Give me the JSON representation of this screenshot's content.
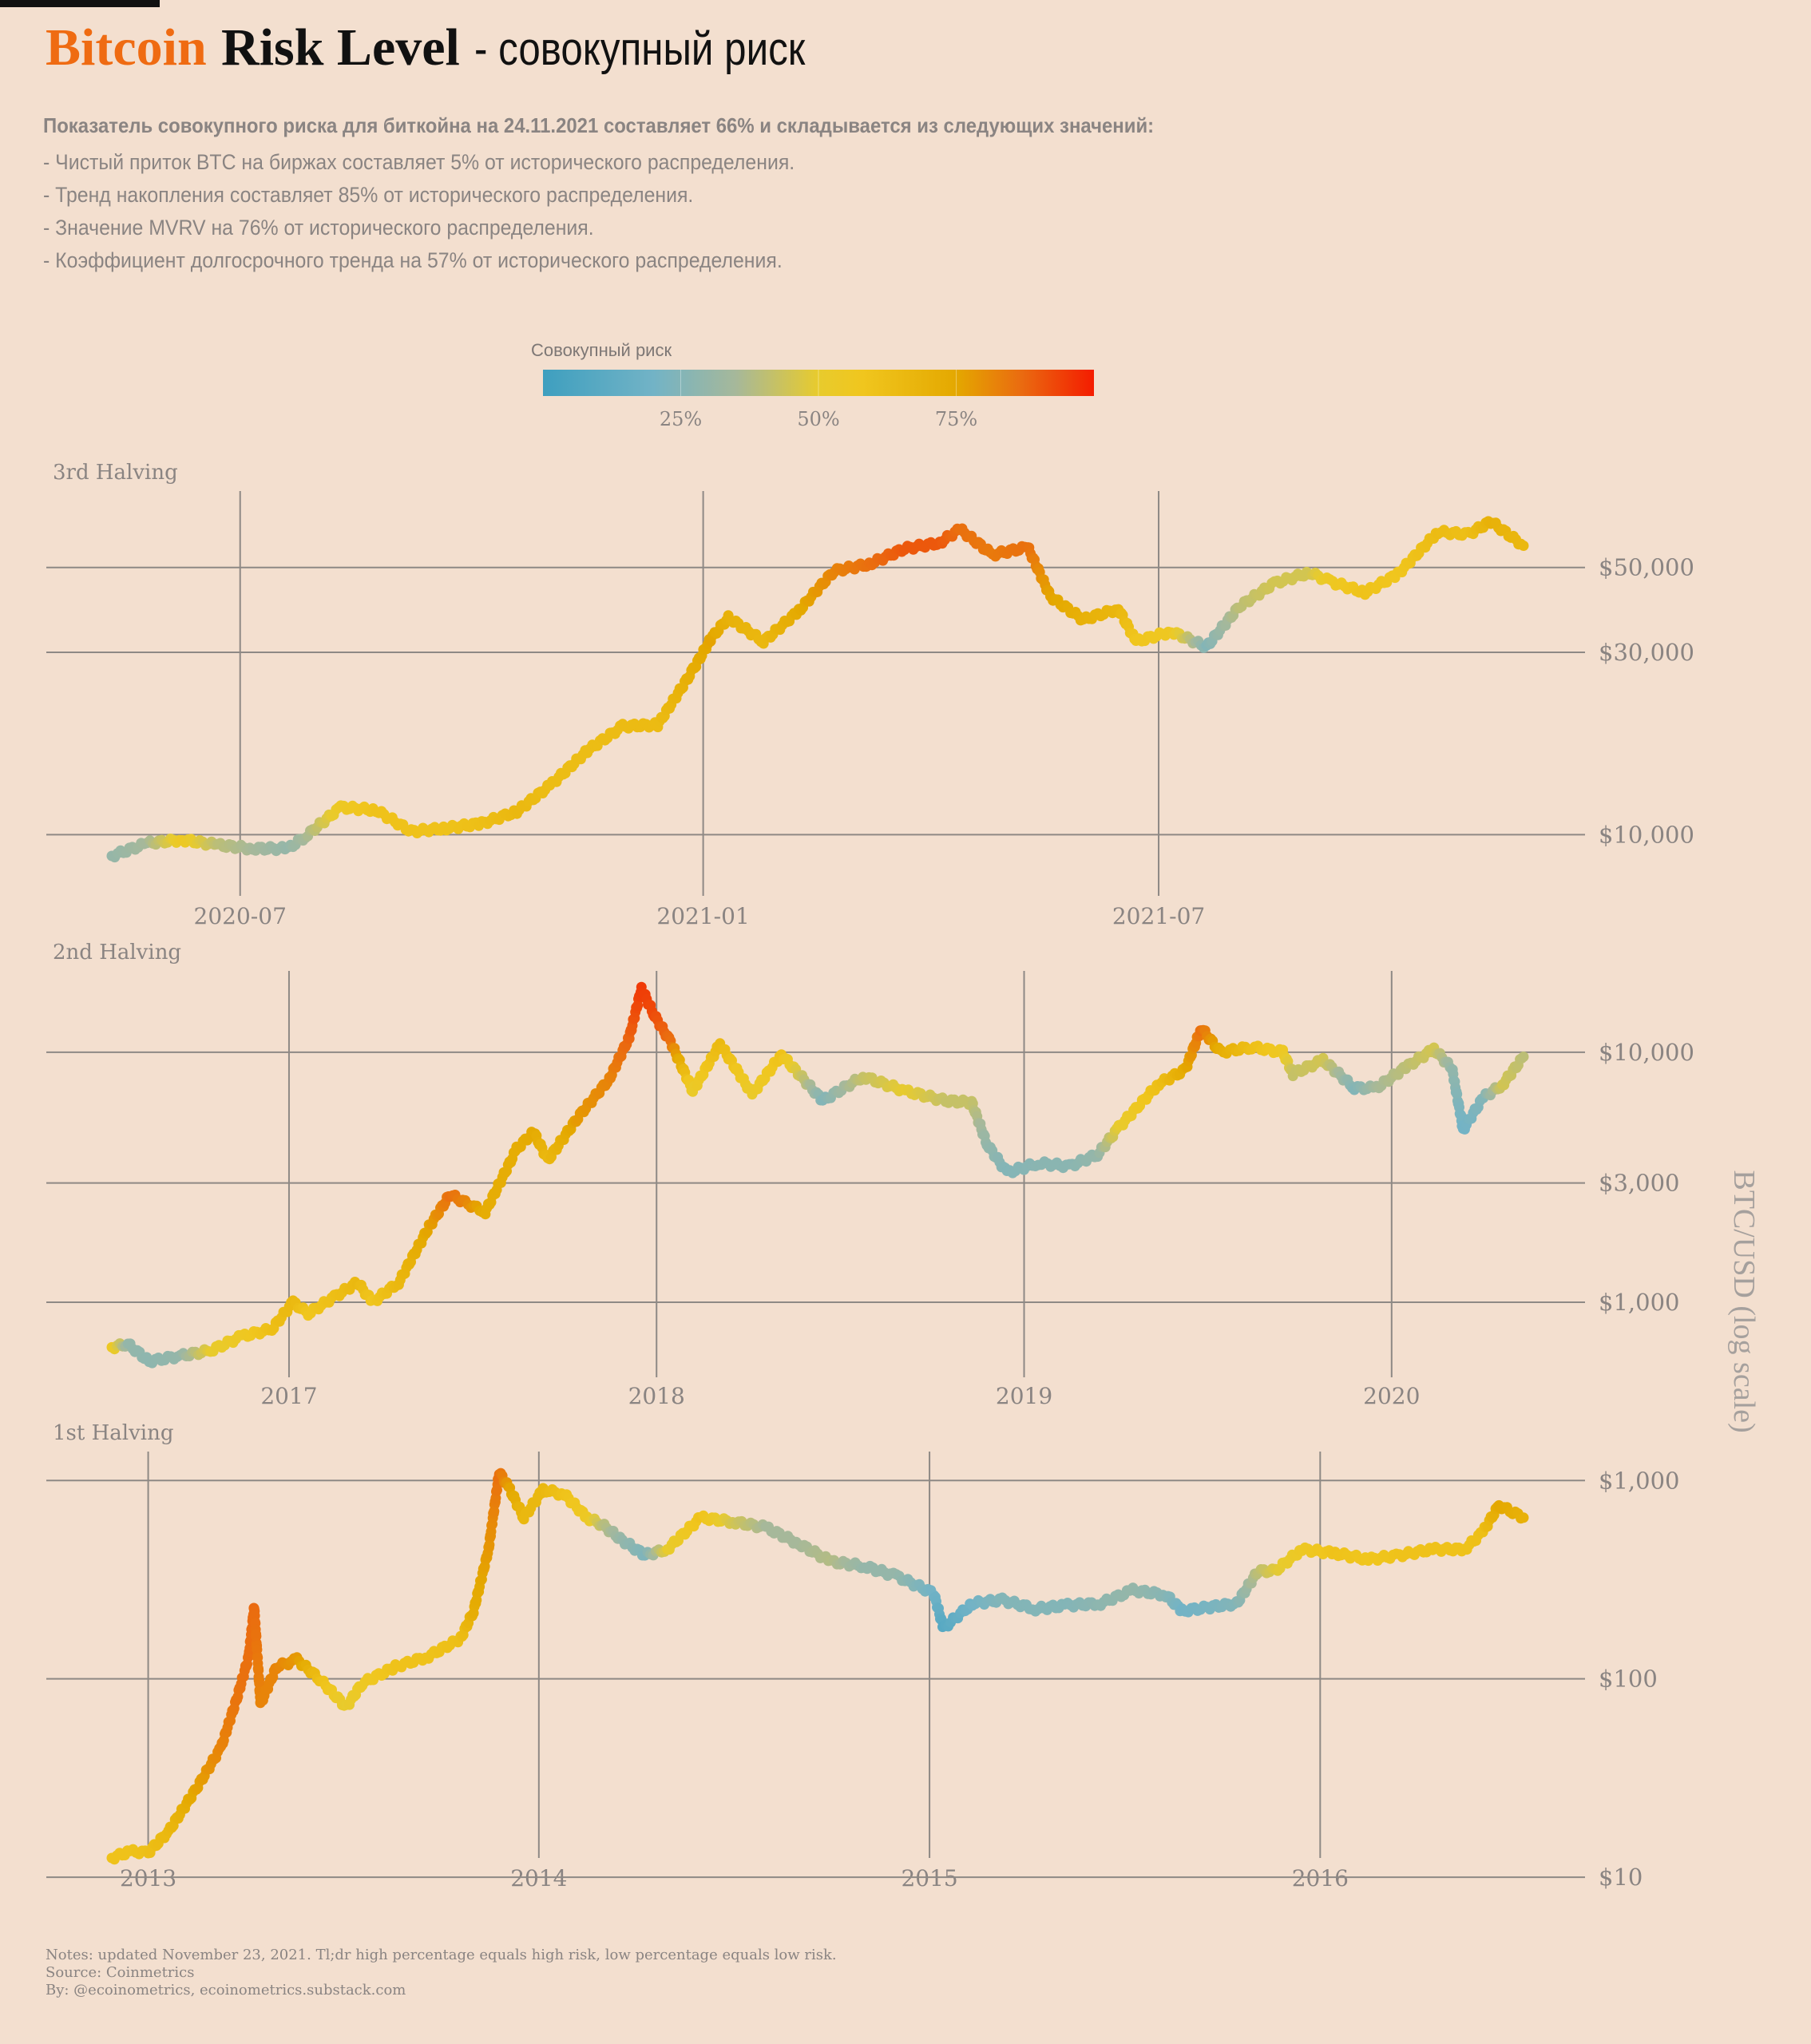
{
  "header": {
    "title_part1": "Bitcoin",
    "title_part2": "Risk Level",
    "title_part3": "- совокупный риск"
  },
  "description": {
    "lead": "Показатель совокупного риска для биткойна на 24.11.2021 составляет 66% и складывается из следующих значений:",
    "lines": [
      "- Чистый приток BTC на биржах составляет 5% от исторического распределения.",
      "- Тренд накопления составляет 85% от исторического распределения.",
      "- Значение MVRV на 76% от исторического распределения.",
      "- Коэффициент долгосрочного тренда на 57% от исторического распределения."
    ]
  },
  "colorbar": {
    "title": "Совокупный риск",
    "ticks": [
      "25%",
      "50%",
      "75%"
    ],
    "tick_values": [
      0.25,
      0.5,
      0.75
    ],
    "stops": [
      {
        "pos": 0.0,
        "color": "#3e9fbf"
      },
      {
        "pos": 0.2,
        "color": "#72b3c6"
      },
      {
        "pos": 0.35,
        "color": "#a6b89a"
      },
      {
        "pos": 0.5,
        "color": "#e8cb2d"
      },
      {
        "pos": 0.58,
        "color": "#f0c61e"
      },
      {
        "pos": 0.75,
        "color": "#e4a800"
      },
      {
        "pos": 0.87,
        "color": "#ea6a10"
      },
      {
        "pos": 1.0,
        "color": "#f41c00"
      }
    ]
  },
  "ylabel": "BTC/USD (log scale)",
  "notes": {
    "line1": "Notes: updated November 23, 2021. Tl;dr high percentage equals high risk, low percentage equals low risk.",
    "line2": "Source: Coinmetrics",
    "line3": "By: @ecoinometrics, ecoinometrics.substack.com"
  },
  "chart_data": [
    {
      "type": "scatter",
      "title": "3rd Halving",
      "ylabel": "BTC/USD (log scale)",
      "y_scale": "log",
      "x_ticks": [
        {
          "date": "2020-07-01",
          "label": "2020-07"
        },
        {
          "date": "2021-01-01",
          "label": "2021-01"
        },
        {
          "date": "2021-07-01",
          "label": "2021-07"
        }
      ],
      "y_ticks": [
        {
          "value": 10000,
          "label": "$10,000"
        },
        {
          "value": 30000,
          "label": "$30,000"
        },
        {
          "value": 50000,
          "label": "$50,000"
        }
      ],
      "xlim": [
        "2020-05-11",
        "2021-11-23"
      ],
      "ylim": [
        8000,
        68000
      ],
      "series": [
        {
          "x": [
            "2020-05-11",
            "2020-05-25",
            "2020-06-08",
            "2020-06-22",
            "2020-07-06",
            "2020-07-20",
            "2020-07-27",
            "2020-08-10",
            "2020-08-24",
            "2020-09-07",
            "2020-09-21",
            "2020-10-05",
            "2020-10-19",
            "2020-11-02",
            "2020-11-16",
            "2020-11-30",
            "2020-12-14",
            "2020-12-28",
            "2021-01-04",
            "2021-01-11",
            "2021-01-25",
            "2021-02-08",
            "2021-02-22",
            "2021-03-08",
            "2021-03-22",
            "2021-04-05",
            "2021-04-13",
            "2021-04-26",
            "2021-05-10",
            "2021-05-19",
            "2021-06-01",
            "2021-06-15",
            "2021-06-22",
            "2021-07-06",
            "2021-07-20",
            "2021-08-02",
            "2021-08-16",
            "2021-08-30",
            "2021-09-07",
            "2021-09-21",
            "2021-10-04",
            "2021-10-20",
            "2021-11-01",
            "2021-11-10",
            "2021-11-23"
          ],
          "y": [
            8800,
            9500,
            9700,
            9400,
            9200,
            9200,
            9900,
            11800,
            11600,
            10200,
            10400,
            10700,
            11500,
            13600,
            16600,
            19200,
            19400,
            27000,
            32500,
            37000,
            32000,
            38500,
            49000,
            51000,
            56000,
            58000,
            63000,
            54000,
            56500,
            42000,
            36500,
            39000,
            32000,
            34000,
            31000,
            39500,
            45500,
            48500,
            46000,
            43000,
            48000,
            62000,
            61000,
            66000,
            57000
          ],
          "risk": [
            0.3,
            0.35,
            0.55,
            0.4,
            0.35,
            0.3,
            0.35,
            0.55,
            0.6,
            0.6,
            0.6,
            0.62,
            0.66,
            0.63,
            0.63,
            0.64,
            0.64,
            0.72,
            0.76,
            0.7,
            0.66,
            0.74,
            0.82,
            0.86,
            0.9,
            0.9,
            0.86,
            0.84,
            0.86,
            0.76,
            0.7,
            0.67,
            0.58,
            0.56,
            0.25,
            0.4,
            0.45,
            0.45,
            0.55,
            0.6,
            0.58,
            0.64,
            0.62,
            0.7,
            0.66
          ]
        }
      ]
    },
    {
      "type": "scatter",
      "title": "2nd Halving",
      "ylabel": "BTC/USD (log scale)",
      "y_scale": "log",
      "x_ticks": [
        {
          "date": "2017-01-01",
          "label": "2017"
        },
        {
          "date": "2018-01-01",
          "label": "2018"
        },
        {
          "date": "2019-01-01",
          "label": "2019"
        },
        {
          "date": "2020-01-01",
          "label": "2020"
        }
      ],
      "y_ticks": [
        {
          "value": 1000,
          "label": "$1,000"
        },
        {
          "value": 3000,
          "label": "$3,000"
        },
        {
          "value": 10000,
          "label": "$10,000"
        }
      ],
      "xlim": [
        "2016-07-09",
        "2020-05-11"
      ],
      "ylim": [
        500,
        18000
      ],
      "series": [
        {
          "x": [
            "2016-07-09",
            "2016-07-25",
            "2016-08-15",
            "2016-09-15",
            "2016-10-15",
            "2016-11-15",
            "2016-12-15",
            "2017-01-05",
            "2017-01-20",
            "2017-02-15",
            "2017-03-10",
            "2017-03-25",
            "2017-04-20",
            "2017-05-20",
            "2017-06-10",
            "2017-06-25",
            "2017-07-15",
            "2017-08-15",
            "2017-09-01",
            "2017-09-15",
            "2017-10-15",
            "2017-11-15",
            "2017-12-05",
            "2017-12-17",
            "2017-12-30",
            "2018-01-15",
            "2018-02-06",
            "2018-03-05",
            "2018-04-06",
            "2018-05-05",
            "2018-06-15",
            "2018-07-25",
            "2018-09-05",
            "2018-10-15",
            "2018-11-10",
            "2018-11-25",
            "2018-12-15",
            "2019-01-15",
            "2019-02-15",
            "2019-03-15",
            "2019-04-05",
            "2019-05-15",
            "2019-06-10",
            "2019-06-26",
            "2019-07-15",
            "2019-08-15",
            "2019-09-15",
            "2019-09-25",
            "2019-10-25",
            "2019-11-25",
            "2019-12-17",
            "2020-01-15",
            "2020-02-12",
            "2020-03-01",
            "2020-03-12",
            "2020-04-01",
            "2020-04-20",
            "2020-05-11"
          ],
          "y": [
            660,
            680,
            580,
            610,
            640,
            730,
            780,
            1000,
            900,
            1050,
            1200,
            1000,
            1200,
            2000,
            2700,
            2500,
            2300,
            4100,
            4800,
            3700,
            5500,
            7800,
            11500,
            18000,
            14000,
            11000,
            7000,
            10800,
            6800,
            9800,
            6400,
            8000,
            7000,
            6400,
            6300,
            4300,
            3300,
            3600,
            3500,
            3900,
            5000,
            7500,
            8500,
            12500,
            10000,
            10500,
            10000,
            8200,
            9300,
            7200,
            7200,
            8700,
            10300,
            8600,
            4900,
            6600,
            7400,
            9600
          ],
          "risk": [
            0.55,
            0.3,
            0.28,
            0.3,
            0.5,
            0.55,
            0.62,
            0.66,
            0.58,
            0.62,
            0.66,
            0.58,
            0.66,
            0.76,
            0.86,
            0.82,
            0.72,
            0.72,
            0.74,
            0.66,
            0.78,
            0.82,
            0.88,
            0.95,
            0.92,
            0.86,
            0.52,
            0.65,
            0.52,
            0.6,
            0.25,
            0.42,
            0.5,
            0.42,
            0.42,
            0.3,
            0.25,
            0.27,
            0.27,
            0.3,
            0.5,
            0.62,
            0.74,
            0.86,
            0.72,
            0.62,
            0.55,
            0.42,
            0.45,
            0.25,
            0.35,
            0.4,
            0.45,
            0.3,
            0.2,
            0.25,
            0.45,
            0.4
          ]
        }
      ]
    },
    {
      "type": "scatter",
      "title": "1st Halving",
      "ylabel": "BTC/USD (log scale)",
      "y_scale": "log",
      "x_ticks": [
        {
          "date": "2013-01-01",
          "label": "2013"
        },
        {
          "date": "2014-01-01",
          "label": "2014"
        },
        {
          "date": "2015-01-01",
          "label": "2015"
        },
        {
          "date": "2016-01-01",
          "label": "2016"
        }
      ],
      "y_ticks": [
        {
          "value": 10,
          "label": "$10"
        },
        {
          "value": 100,
          "label": "$100"
        },
        {
          "value": 1000,
          "label": "$1,000"
        }
      ],
      "xlim": [
        "2012-11-28",
        "2016-07-09"
      ],
      "ylim": [
        10,
        1200
      ],
      "series": [
        {
          "x": [
            "2012-11-28",
            "2012-12-15",
            "2013-01-01",
            "2013-01-20",
            "2013-02-15",
            "2013-03-10",
            "2013-03-25",
            "2013-04-05",
            "2013-04-10",
            "2013-04-16",
            "2013-05-01",
            "2013-05-20",
            "2013-06-10",
            "2013-07-05",
            "2013-07-20",
            "2013-08-20",
            "2013-09-20",
            "2013-10-20",
            "2013-11-01",
            "2013-11-15",
            "2013-11-25",
            "2013-12-05",
            "2013-12-18",
            "2014-01-05",
            "2014-01-25",
            "2014-02-15",
            "2014-03-01",
            "2014-03-20",
            "2014-04-10",
            "2014-05-01",
            "2014-06-01",
            "2014-07-01",
            "2014-08-01",
            "2014-09-01",
            "2014-10-01",
            "2014-11-01",
            "2014-12-01",
            "2015-01-05",
            "2015-01-14",
            "2015-02-10",
            "2015-03-10",
            "2015-04-10",
            "2015-05-10",
            "2015-06-10",
            "2015-07-10",
            "2015-08-10",
            "2015-08-25",
            "2015-09-20",
            "2015-10-15",
            "2015-11-04",
            "2015-11-20",
            "2015-12-15",
            "2016-01-15",
            "2016-02-15",
            "2016-03-15",
            "2016-04-15",
            "2016-05-15",
            "2016-06-01",
            "2016-06-16",
            "2016-07-09"
          ],
          "y": [
            12.5,
            13.5,
            13.3,
            17,
            28,
            45,
            80,
            130,
            230,
            75,
            115,
            125,
            100,
            72,
            95,
            115,
            130,
            160,
            220,
            450,
            1100,
            900,
            650,
            900,
            850,
            650,
            600,
            500,
            420,
            450,
            650,
            620,
            580,
            480,
            390,
            370,
            330,
            270,
            180,
            240,
            250,
            225,
            235,
            240,
            280,
            265,
            220,
            230,
            240,
            350,
            350,
            450,
            430,
            400,
            420,
            450,
            450,
            550,
            750,
            650
          ],
          "risk": [
            0.6,
            0.6,
            0.62,
            0.66,
            0.76,
            0.82,
            0.85,
            0.86,
            0.87,
            0.82,
            0.82,
            0.78,
            0.62,
            0.5,
            0.55,
            0.6,
            0.6,
            0.62,
            0.72,
            0.78,
            0.86,
            0.76,
            0.66,
            0.66,
            0.6,
            0.55,
            0.4,
            0.3,
            0.24,
            0.5,
            0.6,
            0.45,
            0.35,
            0.35,
            0.38,
            0.3,
            0.3,
            0.2,
            0.1,
            0.2,
            0.25,
            0.25,
            0.25,
            0.28,
            0.3,
            0.26,
            0.2,
            0.22,
            0.25,
            0.4,
            0.48,
            0.55,
            0.6,
            0.58,
            0.6,
            0.6,
            0.6,
            0.62,
            0.75,
            0.7
          ]
        }
      ]
    }
  ]
}
